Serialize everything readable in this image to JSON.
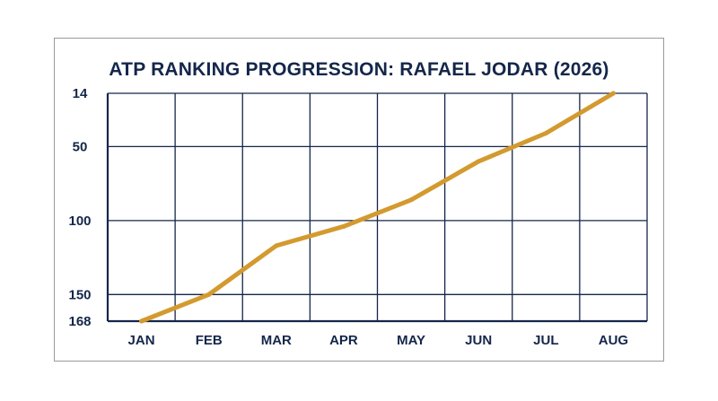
{
  "chart_data": {
    "type": "line",
    "title": "ATP RANKING PROGRESSION: RAFAEL JODAR (2026)",
    "xlabel": "",
    "ylabel": "",
    "categories": [
      "JAN",
      "FEB",
      "MAR",
      "APR",
      "MAY",
      "JUN",
      "JUL",
      "AUG"
    ],
    "series": [
      {
        "values": [
          168,
          150,
          117,
          104,
          86,
          60,
          41,
          14
        ]
      }
    ],
    "y_ticks": [
      14,
      50,
      100,
      150,
      168
    ],
    "ylim": [
      14,
      168
    ],
    "y_inverted": true,
    "grid": true,
    "legend": "none",
    "colors": {
      "line": "#d39a2f",
      "grid": "#14264a",
      "text": "#14264a"
    }
  }
}
